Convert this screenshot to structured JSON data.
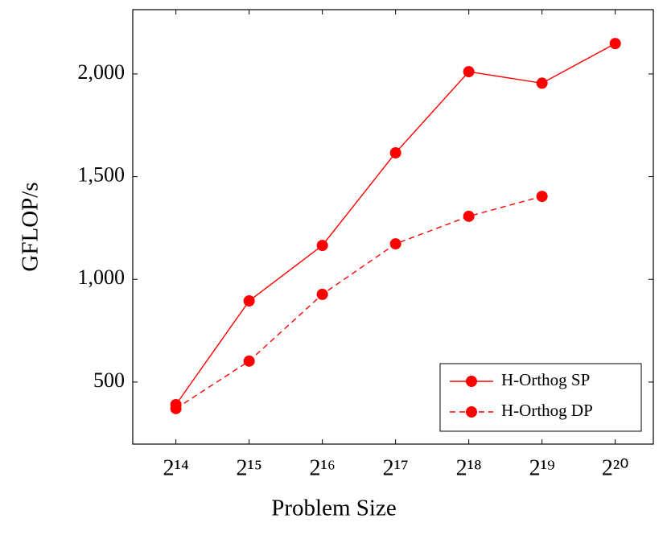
{
  "chart_data": {
    "type": "line",
    "xlabel": "Problem Size",
    "ylabel": "GFLOP/s",
    "x": [
      16384,
      32768,
      65536,
      131072,
      262144,
      524288,
      1048576
    ],
    "xscale": "log2",
    "xlim": [
      10890,
      1503800
    ],
    "xticks": [
      {
        "value": 16384,
        "label": "2¹⁴"
      },
      {
        "value": 32768,
        "label": "2¹⁵"
      },
      {
        "value": 65536,
        "label": "2¹⁶"
      },
      {
        "value": 131072,
        "label": "2¹⁷"
      },
      {
        "value": 262144,
        "label": "2¹⁸"
      },
      {
        "value": 524288,
        "label": "2¹⁹"
      },
      {
        "value": 1048576,
        "label": "2²⁰"
      }
    ],
    "ylim": [
      198,
      2313
    ],
    "yticks": [
      500,
      {
        "value": 1000,
        "label": "1,000"
      },
      {
        "value": 1500,
        "label": "1,500"
      },
      {
        "value": 2000,
        "label": "2,000"
      }
    ],
    "legend": "lower right",
    "series": [
      {
        "name": "H-Orthog SP",
        "color": "#ff0000",
        "dash": false,
        "values": [
          390,
          895,
          1165,
          1616,
          2011,
          1955,
          2148
        ]
      },
      {
        "name": "H-Orthog DP",
        "color": "#ff0000",
        "dash": true,
        "values": [
          371,
          602,
          927,
          1173,
          1307,
          1404,
          null
        ]
      }
    ]
  }
}
